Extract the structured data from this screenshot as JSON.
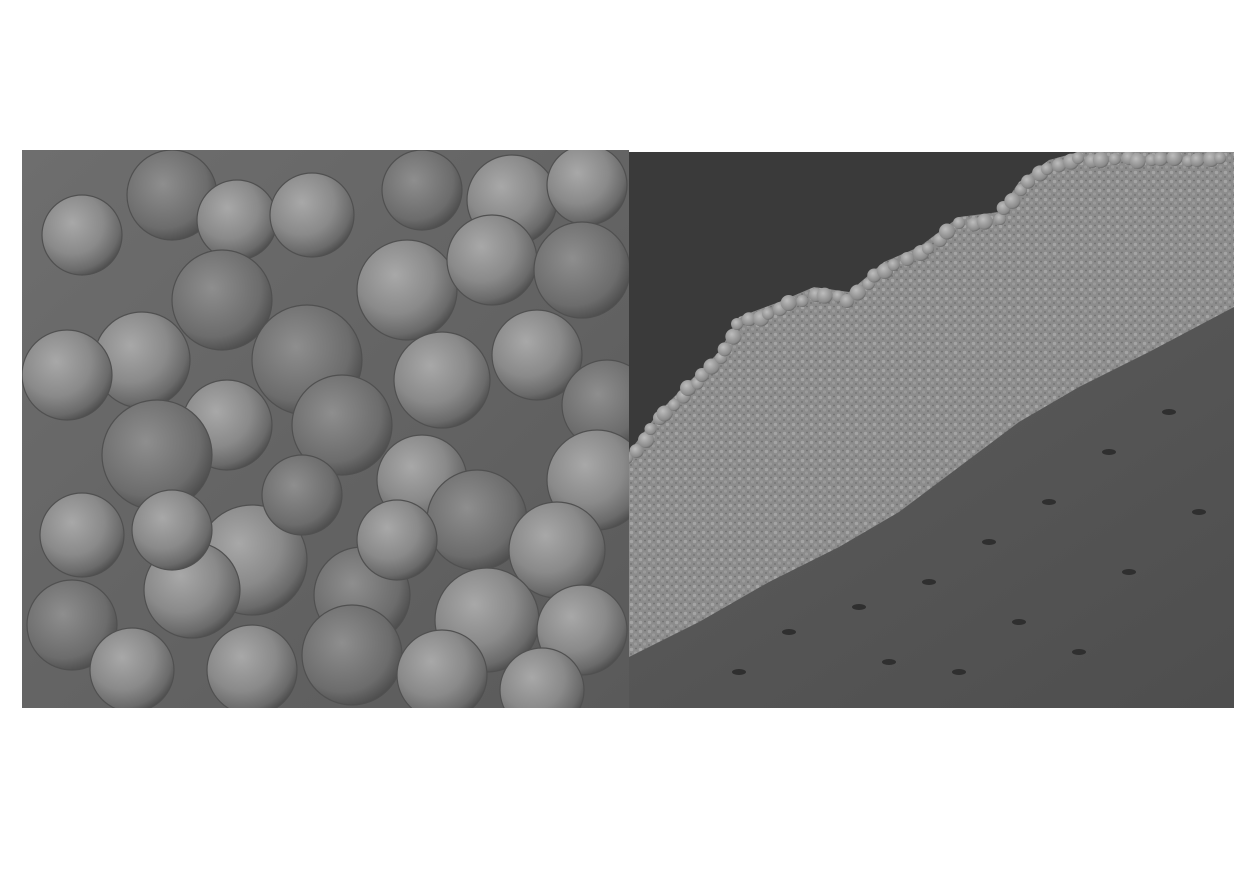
{
  "figure": {
    "panels": [
      {
        "id": "left",
        "subject": "sem-micrograph-spherical-nodules",
        "tone": "#7a7a7a"
      },
      {
        "id": "right",
        "subject": "sem-micrograph-coating-cross-section",
        "tone": "#4a4a4a"
      }
    ]
  }
}
